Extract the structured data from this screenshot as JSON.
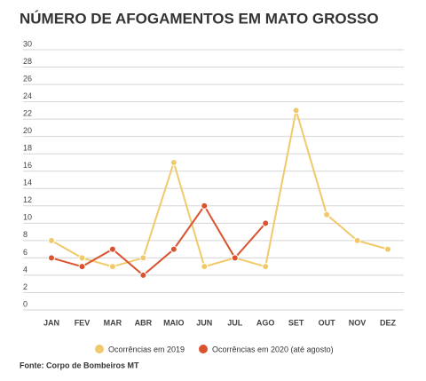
{
  "chart_data": {
    "type": "line",
    "title": "NÚMERO DE AFOGAMENTOS EM MATO GROSSO",
    "categories": [
      "JAN",
      "FEV",
      "MAR",
      "ABR",
      "MAIO",
      "JUN",
      "JUL",
      "AGO",
      "SET",
      "OUT",
      "NOV",
      "DEZ"
    ],
    "series": [
      {
        "name": "Ocorrências em 2019",
        "color": "#f0c96a",
        "values": [
          8,
          6,
          5,
          6,
          17,
          5,
          6,
          5,
          23,
          11,
          8,
          7
        ]
      },
      {
        "name": "Ocorrências em 2020 (até agosto)",
        "color": "#d9532f",
        "values": [
          6,
          5,
          7,
          4,
          7,
          12,
          6,
          10,
          null,
          null,
          null,
          null
        ]
      }
    ],
    "ylim": [
      0,
      30
    ],
    "yticks": [
      0,
      2,
      4,
      6,
      8,
      10,
      12,
      14,
      16,
      18,
      20,
      22,
      24,
      26,
      28,
      30
    ],
    "grid": true,
    "legend": "bottom",
    "source": "Fonte: Corpo de Bombeiros MT"
  }
}
